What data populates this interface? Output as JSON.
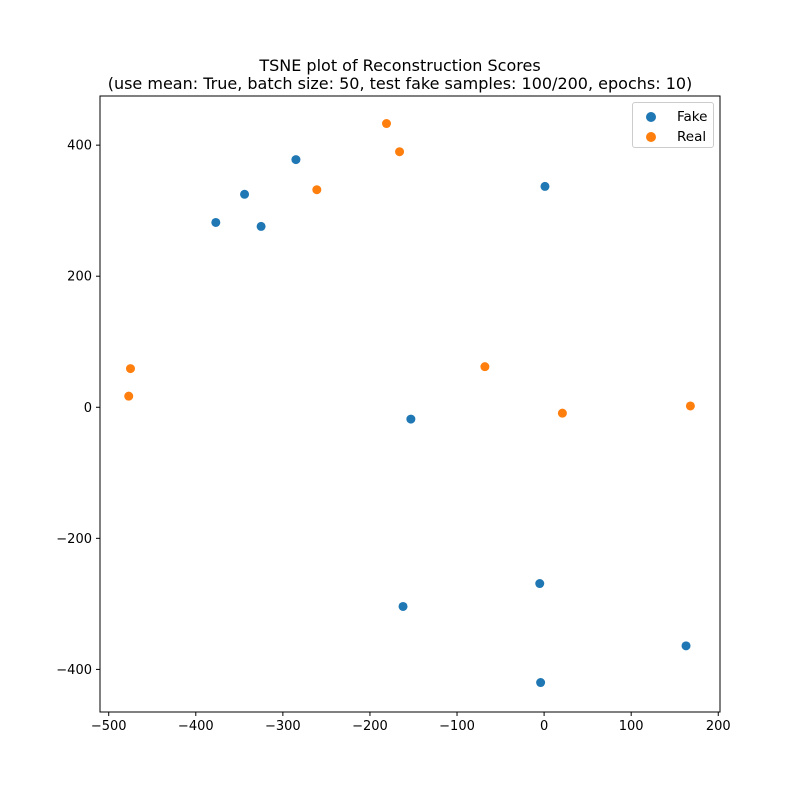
{
  "chart_data": {
    "type": "scatter",
    "title_line1": "TSNE plot of Reconstruction Scores",
    "title_line2": "(use mean: True, batch size: 50, test fake samples: 100/200, epochs: 10)",
    "xlim": [
      -510,
      202
    ],
    "ylim": [
      -465,
      475
    ],
    "xticks": [
      -500,
      -400,
      -300,
      -200,
      -100,
      0,
      100,
      200
    ],
    "yticks": [
      -400,
      -200,
      0,
      200,
      400
    ],
    "tick_labels_x": [
      "−500",
      "−400",
      "−300",
      "−200",
      "−100",
      "0",
      "100",
      "200"
    ],
    "tick_labels_y": [
      "−400",
      "−200",
      "0",
      "200",
      "400"
    ],
    "grid": false,
    "legend_position": "top-right",
    "series": [
      {
        "name": "Fake",
        "color": "#1f77b4",
        "points": [
          [
            -377,
            282
          ],
          [
            -344,
            325
          ],
          [
            -325,
            276
          ],
          [
            -285,
            378
          ],
          [
            1,
            337
          ],
          [
            -153,
            -18
          ],
          [
            -162,
            -304
          ],
          [
            -5,
            -269
          ],
          [
            163,
            -364
          ],
          [
            -4,
            -420
          ]
        ]
      },
      {
        "name": "Real",
        "color": "#ff7f0e",
        "points": [
          [
            -181,
            433
          ],
          [
            -166,
            390
          ],
          [
            -261,
            332
          ],
          [
            -475,
            59
          ],
          [
            -477,
            17
          ],
          [
            -68,
            62
          ],
          [
            21,
            -9
          ],
          [
            168,
            2
          ]
        ]
      }
    ]
  }
}
